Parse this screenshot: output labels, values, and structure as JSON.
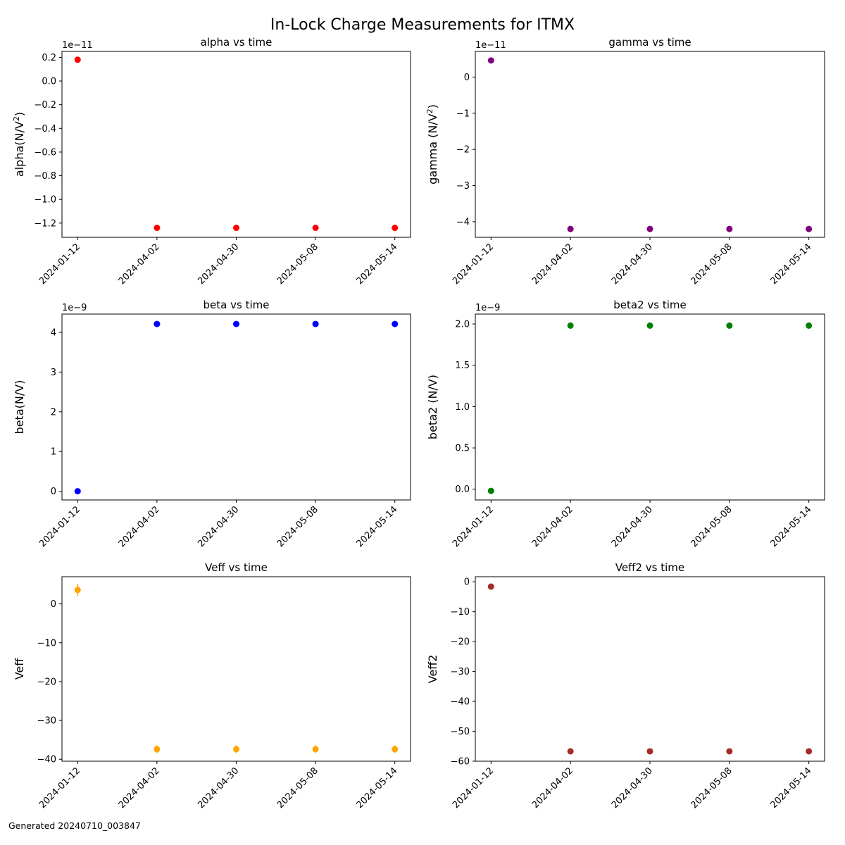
{
  "figure": {
    "title": "In-Lock Charge Measurements for ITMX",
    "footer": "Generated 20240710_003847"
  },
  "chart_data": [
    {
      "type": "scatter",
      "title": "alpha vs time",
      "xlabel": "",
      "ylabel": "alpha(N/V²)",
      "ylabel_main": "alpha(N/V",
      "ylabel_sup": "2",
      "ylabel_end": ")",
      "offset_text": "1e−11",
      "scale": 1e-11,
      "color": "#ff0000",
      "x": [
        "2024-01-12",
        "2024-04-02",
        "2024-04-30",
        "2024-05-08",
        "2024-05-14"
      ],
      "y": [
        1.8e-12,
        -1.24e-11,
        -1.24e-11,
        -1.24e-11,
        -1.24e-11
      ],
      "ylim": [
        -1.32e-11,
        2.5e-12
      ],
      "yticks": [
        2e-12,
        0,
        -2e-12,
        -4e-12,
        -6e-12,
        -8e-12,
        -1e-11,
        -1.2e-11
      ],
      "ytick_labels": [
        "0.2",
        "0.0",
        "−0.2",
        "−0.4",
        "−0.6",
        "−0.8",
        "−1.0",
        "−1.2"
      ],
      "grid": false,
      "legend": "none"
    },
    {
      "type": "scatter",
      "title": "gamma vs time",
      "xlabel": "",
      "ylabel": "gamma (N/V²)",
      "ylabel_main": "gamma (N/V",
      "ylabel_sup": "2",
      "ylabel_end": ")",
      "offset_text": "1e−11",
      "scale": 1e-11,
      "color": "#800080",
      "x": [
        "2024-01-12",
        "2024-04-02",
        "2024-04-30",
        "2024-05-08",
        "2024-05-14"
      ],
      "y": [
        4.6e-12,
        -4.2e-11,
        -4.2e-11,
        -4.2e-11,
        -4.2e-11
      ],
      "ylim": [
        -4.43e-11,
        7.1e-12
      ],
      "yticks": [
        0,
        -1e-11,
        -2e-11,
        -3e-11,
        -4e-11
      ],
      "ytick_labels": [
        "0",
        "−1",
        "−2",
        "−3",
        "−4"
      ],
      "grid": false,
      "legend": "none"
    },
    {
      "type": "scatter",
      "title": "beta vs time",
      "xlabel": "",
      "ylabel": "beta(N/V)",
      "ylabel_main": "beta(N/V)",
      "ylabel_sup": "",
      "ylabel_end": "",
      "offset_text": "1e−9",
      "scale": 1e-09,
      "color": "#0000ff",
      "x": [
        "2024-01-12",
        "2024-04-02",
        "2024-04-30",
        "2024-05-08",
        "2024-05-14"
      ],
      "y": [
        0,
        4.21e-09,
        4.21e-09,
        4.21e-09,
        4.21e-09
      ],
      "ylim": [
        -2.2e-10,
        4.46e-09
      ],
      "yticks": [
        0,
        1e-09,
        2e-09,
        3e-09,
        4e-09
      ],
      "ytick_labels": [
        "0",
        "1",
        "2",
        "3",
        "4"
      ],
      "grid": false,
      "legend": "none"
    },
    {
      "type": "scatter",
      "title": "beta2 vs time",
      "xlabel": "",
      "ylabel": "beta2 (N/V)",
      "ylabel_main": "beta2 (N/V)",
      "ylabel_sup": "",
      "ylabel_end": "",
      "offset_text": "1e−9",
      "scale": 1e-09,
      "color": "#008000",
      "x": [
        "2024-01-12",
        "2024-04-02",
        "2024-04-30",
        "2024-05-08",
        "2024-05-14"
      ],
      "y": [
        -2e-11,
        1.98e-09,
        1.98e-09,
        1.98e-09,
        1.98e-09
      ],
      "ylim": [
        -1.3e-10,
        2.12e-09
      ],
      "yticks": [
        0,
        5e-10,
        1e-09,
        1.5e-09,
        2e-09
      ],
      "ytick_labels": [
        "0.0",
        "0.5",
        "1.0",
        "1.5",
        "2.0"
      ],
      "grid": false,
      "legend": "none"
    },
    {
      "type": "scatter",
      "title": "Veff vs time",
      "xlabel": "",
      "ylabel": "Veff",
      "ylabel_main": "Veff",
      "ylabel_sup": "",
      "ylabel_end": "",
      "offset_text": "",
      "scale": 1,
      "color": "#ffa500",
      "x": [
        "2024-01-12",
        "2024-04-02",
        "2024-04-30",
        "2024-05-08",
        "2024-05-14"
      ],
      "y": [
        3.6,
        -37.4,
        -37.4,
        -37.4,
        -37.4
      ],
      "yerr": [
        1.6,
        1.0,
        1.0,
        1.0,
        1.0
      ],
      "ylim": [
        -40.5,
        7.0
      ],
      "yticks": [
        0,
        -10,
        -20,
        -30,
        -40
      ],
      "ytick_labels": [
        "0",
        "−10",
        "−20",
        "−30",
        "−40"
      ],
      "grid": false,
      "legend": "none"
    },
    {
      "type": "scatter",
      "title": "Veff2 vs time",
      "xlabel": "",
      "ylabel": "Veff2",
      "ylabel_main": "Veff2",
      "ylabel_sup": "",
      "ylabel_end": "",
      "offset_text": "",
      "scale": 1,
      "color": "#a52a2a",
      "x": [
        "2024-01-12",
        "2024-04-02",
        "2024-04-30",
        "2024-05-08",
        "2024-05-14"
      ],
      "y": [
        -1.6,
        -56.7,
        -56.7,
        -56.7,
        -56.7
      ],
      "ylim": [
        -60.0,
        1.7
      ],
      "yticks": [
        0,
        -10,
        -20,
        -30,
        -40,
        -50,
        -60
      ],
      "ytick_labels": [
        "0",
        "−10",
        "−20",
        "−30",
        "−40",
        "−50",
        "−60"
      ],
      "grid": false,
      "legend": "none"
    }
  ]
}
